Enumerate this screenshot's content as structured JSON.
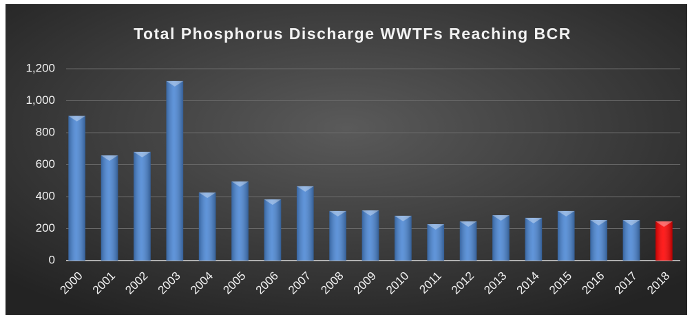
{
  "chart_data": {
    "type": "bar",
    "title": "Total Phosphorus Discharge WWTFs Reaching BCR",
    "categories": [
      "2000",
      "2001",
      "2002",
      "2003",
      "2004",
      "2005",
      "2006",
      "2007",
      "2008",
      "2009",
      "2010",
      "2011",
      "2012",
      "2013",
      "2014",
      "2015",
      "2016",
      "2017",
      "2018"
    ],
    "values": [
      905,
      658,
      680,
      1123,
      426,
      495,
      383,
      465,
      310,
      314,
      280,
      228,
      245,
      284,
      267,
      310,
      254,
      254,
      245
    ],
    "colors": [
      "#4a86d4",
      "#4a86d4",
      "#4a86d4",
      "#4a86d4",
      "#4a86d4",
      "#4a86d4",
      "#4a86d4",
      "#4a86d4",
      "#4a86d4",
      "#4a86d4",
      "#4a86d4",
      "#4a86d4",
      "#4a86d4",
      "#4a86d4",
      "#4a86d4",
      "#4a86d4",
      "#4a86d4",
      "#4a86d4",
      "#ff0000"
    ],
    "ylim": [
      0,
      1200
    ],
    "yticks": [
      0,
      200,
      400,
      600,
      800,
      {
        "value": 1000,
        "label": "1,000"
      },
      {
        "value": 1200,
        "label": "1,200"
      }
    ],
    "grid": true
  }
}
